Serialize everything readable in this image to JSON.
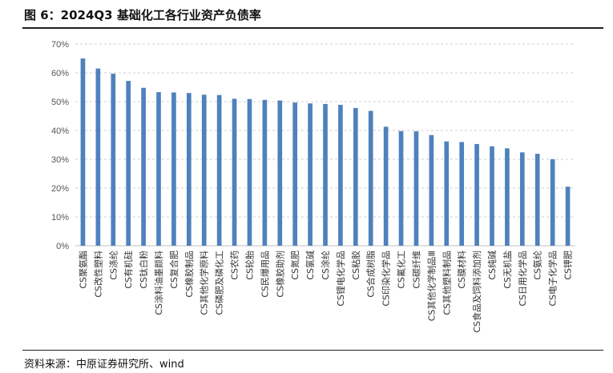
{
  "header": {
    "title": "图 6：2024Q3 基础化工各行业资产负债率"
  },
  "footer": {
    "source": "资料来源：中原证券研究所、wind"
  },
  "chart_data": {
    "type": "bar",
    "title": "图 6：2024Q3 基础化工各行业资产负债率",
    "xlabel": "",
    "ylabel": "",
    "ylim": [
      0,
      70
    ],
    "ytick_labels": [
      "0%",
      "10%",
      "20%",
      "30%",
      "40%",
      "50%",
      "60%",
      "70%"
    ],
    "grid": true,
    "bar_color": "#4f81bd",
    "categories": [
      "CS聚氨酯",
      "CS改性塑料",
      "CS涤纶",
      "CS有机硅",
      "CS钛白粉",
      "CS涂料油墨颜料",
      "CS复合肥",
      "CS橡胶制品",
      "CS其他化学原料",
      "CS磷肥及磷化工",
      "CS农药",
      "CS轮胎",
      "CS民爆用品",
      "CS橡胶助剂",
      "CS氮肥",
      "CS氯碱",
      "CS涂纶",
      "CS锂电化学品",
      "CS粘胶",
      "CS合成树脂",
      "CS印染化学品",
      "CS氟化工",
      "CS碳纤维",
      "CS其他化学制品Ⅲ",
      "CS其他塑料制品",
      "CS膜材料",
      "CS食品及饲料添加剂",
      "CS纯碱",
      "CS无机盐",
      "CS日用化学品",
      "CS氨纶",
      "CS电子化学品",
      "CS钾肥"
    ],
    "values": [
      65.0,
      61.5,
      59.7,
      57.2,
      54.8,
      53.3,
      53.2,
      53.0,
      52.4,
      52.3,
      51.0,
      50.9,
      50.6,
      50.4,
      49.7,
      49.4,
      49.2,
      48.9,
      47.8,
      46.8,
      41.3,
      39.8,
      39.7,
      38.4,
      36.2,
      36.0,
      35.3,
      34.5,
      33.8,
      32.4,
      31.9,
      30.0,
      20.5
    ]
  }
}
